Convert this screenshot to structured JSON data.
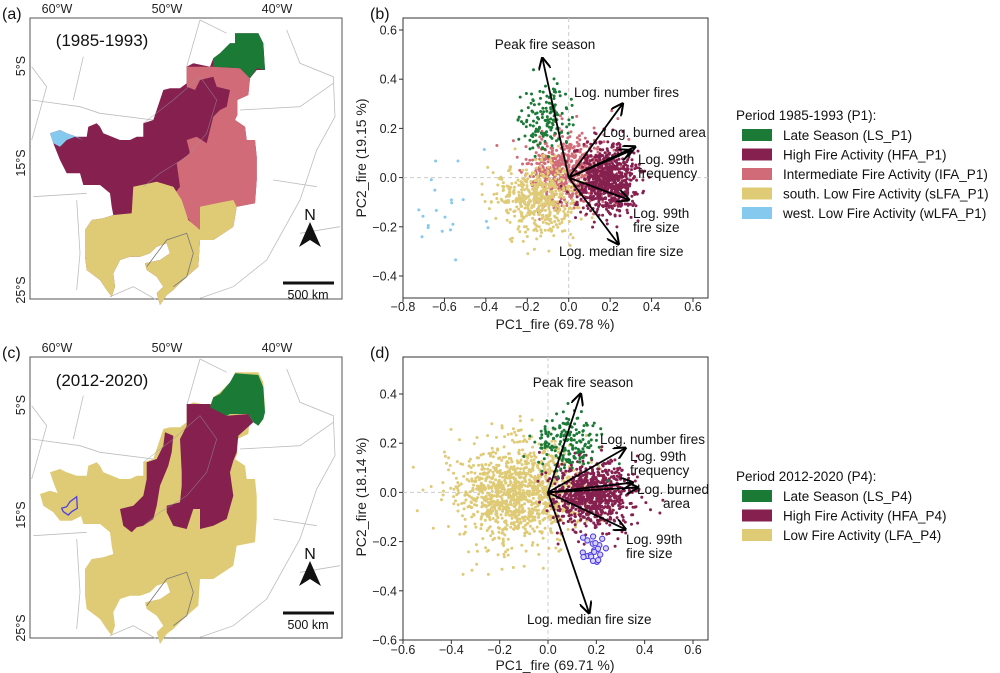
{
  "panels": {
    "a": {
      "label": "(a)",
      "period": "(1985-1993)",
      "lon_ticks": [
        "60°W",
        "50°W",
        "40°W"
      ],
      "lat_ticks": [
        "5°S",
        "15°S",
        "25°S"
      ],
      "north": "N",
      "scale": "500 km"
    },
    "b": {
      "label": "(b)"
    },
    "c": {
      "label": "(c)",
      "period": "(2012-2020)",
      "lon_ticks": [
        "60°W",
        "50°W",
        "40°W"
      ],
      "lat_ticks": [
        "5°S",
        "15°S",
        "25°S"
      ],
      "north": "N",
      "scale": "500 km"
    },
    "d": {
      "label": "(d)"
    }
  },
  "colors": {
    "late_season": "#1a7a36",
    "high_fire": "#85204f",
    "intermediate_fire": "#d06b77",
    "low_fire": "#dfca76",
    "west_low_fire": "#86c9ef",
    "highlight_outline": "#4f3fe0",
    "map_boundary": "#bdbdbd"
  },
  "legends": {
    "b": {
      "title": "Period 1985-1993 (P1):",
      "items": [
        {
          "label": "Late Season (LS_P1)",
          "color": "#1a7a36"
        },
        {
          "label": "High Fire Activity (HFA_P1)",
          "color": "#85204f"
        },
        {
          "label": "Intermediate Fire Activity (IFA_P1)",
          "color": "#d06b77"
        },
        {
          "label": "south. Low Fire Activity (sLFA_P1)",
          "color": "#dfca76"
        },
        {
          "label": "west. Low Fire Activity (wLFA_P1)",
          "color": "#86c9ef"
        }
      ]
    },
    "d": {
      "title": "Period 2012-2020 (P4):",
      "items": [
        {
          "label": "Late Season (LS_P4)",
          "color": "#1a7a36"
        },
        {
          "label": "High Fire Activity (HFA_P4)",
          "color": "#85204f"
        },
        {
          "label": "Low Fire Activity (LFA_P4)",
          "color": "#dfca76"
        }
      ]
    }
  },
  "chart_data": [
    {
      "type": "scatter",
      "panel": "b",
      "xlabel": "PC1_fire (69.78 %)",
      "ylabel": "PC2_fire (19.15 %)",
      "xlim": [
        -0.8,
        0.67
      ],
      "ylim": [
        -0.49,
        0.65
      ],
      "xticks": [
        -0.8,
        -0.6,
        -0.4,
        -0.2,
        0.0,
        0.2,
        0.4,
        0.6
      ],
      "yticks": [
        -0.4,
        -0.2,
        0.0,
        0.2,
        0.4,
        0.6
      ],
      "xtick_labels": [
        "−0.8",
        "−0.6",
        "−0.4",
        "−0.2",
        "0.0",
        "0.2",
        "0.4",
        "0.6"
      ],
      "ytick_labels": [
        "−0.4",
        "−0.2",
        "0.0",
        "0.2",
        "0.4",
        "0.6"
      ],
      "grid": false,
      "reference_lines": [
        0,
        0
      ],
      "clusters": [
        {
          "name": "Intermediate Fire Activity (IFA_P1)",
          "color": "#d06b77",
          "center": [
            0.0,
            0.03
          ],
          "spread": [
            0.1,
            0.07
          ],
          "n": 650
        },
        {
          "name": "south. Low Fire Activity (sLFA_P1)",
          "color": "#dfca76",
          "center": [
            -0.15,
            -0.08
          ],
          "spread": [
            0.1,
            0.07
          ],
          "n": 520
        },
        {
          "name": "High Fire Activity (HFA_P1)",
          "color": "#85204f",
          "center": [
            0.19,
            -0.01
          ],
          "spread": [
            0.07,
            0.07
          ],
          "n": 750
        },
        {
          "name": "Late Season (LS_P1)",
          "color": "#1a7a36",
          "center": [
            -0.11,
            0.24
          ],
          "spread": [
            0.07,
            0.07
          ],
          "n": 160
        },
        {
          "name": "west. Low Fire Activity (wLFA_P1)",
          "color": "#86c9ef",
          "center": [
            -0.5,
            -0.1
          ],
          "spread": [
            0.2,
            0.1
          ],
          "n": 25
        }
      ],
      "loadings": [
        {
          "label": [
            "Peak fire season"
          ],
          "x": -0.127,
          "y": 0.485
        },
        {
          "label": [
            "Log. number fires"
          ],
          "x": 0.26,
          "y": 0.3
        },
        {
          "label": [
            "Log. burned area"
          ],
          "x": 0.32,
          "y": 0.125
        },
        {
          "label": [
            "Log. 99th",
            "frequency"
          ],
          "x": 0.3,
          "y": 0.11
        },
        {
          "label": [
            "Log. 99th",
            "fire size"
          ],
          "x": 0.29,
          "y": -0.09
        },
        {
          "label": [
            "Log. median fire size"
          ],
          "x": 0.24,
          "y": -0.27
        }
      ]
    },
    {
      "type": "scatter",
      "panel": "d",
      "xlabel": "PC1_fire (69.71 %)",
      "ylabel": "PC2_fire (18.14 %)",
      "xlim": [
        -0.6,
        0.66
      ],
      "ylim": [
        -0.6,
        0.55
      ],
      "xticks": [
        -0.6,
        -0.4,
        -0.2,
        0.0,
        0.2,
        0.4,
        0.6
      ],
      "yticks": [
        -0.6,
        -0.4,
        -0.2,
        0.0,
        0.2,
        0.4
      ],
      "xtick_labels": [
        "−0.6",
        "−0.4",
        "−0.2",
        "0.0",
        "0.2",
        "0.4",
        "0.6"
      ],
      "ytick_labels": [
        "−0.6",
        "−0.4",
        "−0.2",
        "0.0",
        "0.2",
        "0.4"
      ],
      "grid": false,
      "reference_lines": [
        0,
        0
      ],
      "clusters": [
        {
          "name": "Low Fire Activity (LFA_P4)",
          "color": "#dfca76",
          "center": [
            -0.12,
            0.0
          ],
          "spread": [
            0.13,
            0.1
          ],
          "n": 1200
        },
        {
          "name": "High Fire Activity (HFA_P4)",
          "color": "#85204f",
          "center": [
            0.18,
            -0.01
          ],
          "spread": [
            0.08,
            0.07
          ],
          "n": 800
        },
        {
          "name": "Late Season (LS_P4)",
          "color": "#1a7a36",
          "center": [
            0.08,
            0.2
          ],
          "spread": [
            0.07,
            0.06
          ],
          "n": 180
        },
        {
          "name": "highlighted",
          "color": "#4f3fe0",
          "center": [
            0.22,
            -0.23
          ],
          "spread": [
            0.035,
            0.03
          ],
          "n": 20,
          "outlined": true
        }
      ],
      "loadings": [
        {
          "label": [
            "Peak fire season"
          ],
          "x": 0.135,
          "y": 0.4
        },
        {
          "label": [
            "Log. number fires"
          ],
          "x": 0.32,
          "y": 0.18
        },
        {
          "label": [
            "Log. 99th",
            "frequency"
          ],
          "x": 0.35,
          "y": 0.04
        },
        {
          "label": [
            "Log. burned",
            "area"
          ],
          "x": 0.37,
          "y": 0.02
        },
        {
          "label": [
            "Log. 99th",
            "fire size"
          ],
          "x": 0.32,
          "y": -0.15
        },
        {
          "label": [
            "Log. median fire size"
          ],
          "x": 0.17,
          "y": -0.49
        }
      ]
    }
  ]
}
